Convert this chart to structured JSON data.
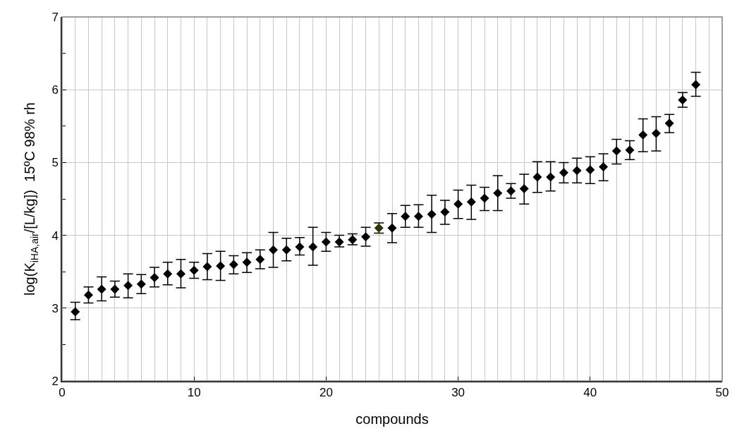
{
  "chart_data": {
    "type": "scatter",
    "xlabel": "compounds",
    "ylabel": "log(K$_{iHA,air}$/[L/kg])  15ºC 98% rh",
    "x": [
      1,
      2,
      3,
      4,
      5,
      6,
      7,
      8,
      9,
      10,
      11,
      12,
      13,
      14,
      15,
      16,
      17,
      18,
      19,
      20,
      21,
      22,
      23,
      24,
      25,
      26,
      27,
      28,
      29,
      30,
      31,
      32,
      33,
      34,
      35,
      36,
      37,
      38,
      39,
      40,
      41,
      42,
      43,
      44,
      45,
      46,
      47,
      48
    ],
    "values": [
      2.95,
      3.18,
      3.26,
      3.26,
      3.31,
      3.33,
      3.42,
      3.47,
      3.47,
      3.52,
      3.57,
      3.58,
      3.6,
      3.63,
      3.67,
      3.8,
      3.8,
      3.84,
      3.84,
      3.91,
      3.91,
      3.94,
      3.98,
      4.1,
      4.1,
      4.26,
      4.26,
      4.29,
      4.32,
      4.43,
      4.46,
      4.51,
      4.58,
      4.61,
      4.64,
      4.8,
      4.8,
      4.86,
      4.89,
      4.9,
      4.94,
      5.16,
      5.17,
      5.38,
      5.4,
      5.54,
      5.86,
      6.07
    ],
    "errors": [
      [
        2.84,
        3.08
      ],
      [
        3.07,
        3.29
      ],
      [
        3.1,
        3.43
      ],
      [
        3.15,
        3.37
      ],
      [
        3.14,
        3.47
      ],
      [
        3.2,
        3.46
      ],
      [
        3.29,
        3.56
      ],
      [
        3.32,
        3.63
      ],
      [
        3.28,
        3.67
      ],
      [
        3.41,
        3.63
      ],
      [
        3.39,
        3.75
      ],
      [
        3.38,
        3.78
      ],
      [
        3.47,
        3.72
      ],
      [
        3.49,
        3.76
      ],
      [
        3.54,
        3.8
      ],
      [
        3.56,
        4.04
      ],
      [
        3.65,
        3.96
      ],
      [
        3.73,
        3.97
      ],
      [
        3.59,
        4.11
      ],
      [
        3.78,
        4.04
      ],
      [
        3.84,
        4.0
      ],
      [
        3.87,
        4.02
      ],
      [
        3.85,
        4.11
      ],
      [
        4.03,
        4.17
      ],
      [
        3.9,
        4.3
      ],
      [
        4.11,
        4.41
      ],
      [
        4.11,
        4.42
      ],
      [
        4.04,
        4.55
      ],
      [
        4.15,
        4.48
      ],
      [
        4.23,
        4.62
      ],
      [
        4.22,
        4.69
      ],
      [
        4.34,
        4.66
      ],
      [
        4.34,
        4.82
      ],
      [
        4.51,
        4.71
      ],
      [
        4.43,
        4.84
      ],
      [
        4.59,
        5.01
      ],
      [
        4.61,
        5.01
      ],
      [
        4.72,
        5.0
      ],
      [
        4.72,
        5.06
      ],
      [
        4.71,
        5.08
      ],
      [
        4.75,
        5.12
      ],
      [
        4.98,
        5.32
      ],
      [
        5.04,
        5.3
      ],
      [
        5.15,
        5.6
      ],
      [
        5.16,
        5.63
      ],
      [
        5.41,
        5.66
      ],
      [
        5.76,
        5.96
      ],
      [
        5.91,
        6.24
      ]
    ],
    "colors": [
      "#000000",
      "#000000",
      "#000000",
      "#000000",
      "#000000",
      "#000000",
      "#000000",
      "#000000",
      "#000000",
      "#000000",
      "#000000",
      "#000000",
      "#000000",
      "#000000",
      "#000000",
      "#000000",
      "#000000",
      "#000000",
      "#000000",
      "#000000",
      "#000000",
      "#000000",
      "#000000",
      "#333300",
      "#000000",
      "#000000",
      "#000000",
      "#000000",
      "#000000",
      "#000000",
      "#000000",
      "#000000",
      "#000000",
      "#000000",
      "#000000",
      "#000000",
      "#000000",
      "#000000",
      "#000000",
      "#000000",
      "#000000",
      "#000000",
      "#000000",
      "#000000",
      "#000000",
      "#000000",
      "#000000",
      "#000000"
    ],
    "marker": "diamond",
    "xlim": [
      0,
      50
    ],
    "ylim": [
      2,
      7
    ],
    "xticks": [
      0,
      {
        "value": 1,
        "label": null
      },
      {
        "value": 2,
        "label": null
      },
      {
        "value": 3,
        "label": null
      },
      {
        "value": 4,
        "label": null
      },
      {
        "value": 5,
        "label": null
      },
      {
        "value": 6,
        "label": null
      },
      {
        "value": 7,
        "label": null
      },
      {
        "value": 8,
        "label": null
      },
      {
        "value": 9,
        "label": null
      },
      10,
      {
        "value": 11,
        "label": null
      },
      {
        "value": 12,
        "label": null
      },
      {
        "value": 13,
        "label": null
      },
      {
        "value": 14,
        "label": null
      },
      {
        "value": 15,
        "label": null
      },
      {
        "value": 16,
        "label": null
      },
      {
        "value": 17,
        "label": null
      },
      {
        "value": 18,
        "label": null
      },
      {
        "value": 19,
        "label": null
      },
      20,
      {
        "value": 21,
        "label": null
      },
      {
        "value": 22,
        "label": null
      },
      {
        "value": 23,
        "label": null
      },
      {
        "value": 24,
        "label": null
      },
      {
        "value": 25,
        "label": null
      },
      {
        "value": 26,
        "label": null
      },
      {
        "value": 27,
        "label": null
      },
      {
        "value": 28,
        "label": null
      },
      {
        "value": 29,
        "label": null
      },
      30,
      {
        "value": 31,
        "label": null
      },
      {
        "value": 32,
        "label": null
      },
      {
        "value": 33,
        "label": null
      },
      {
        "value": 34,
        "label": null
      },
      {
        "value": 35,
        "label": null
      },
      {
        "value": 36,
        "label": null
      },
      {
        "value": 37,
        "label": null
      },
      {
        "value": 38,
        "label": null
      },
      {
        "value": 39,
        "label": null
      },
      40,
      {
        "value": 41,
        "label": null
      },
      {
        "value": 42,
        "label": null
      },
      {
        "value": 43,
        "label": null
      },
      {
        "value": 44,
        "label": null
      },
      {
        "value": 45,
        "label": null
      },
      {
        "value": 46,
        "label": null
      },
      {
        "value": 47,
        "label": null
      },
      {
        "value": 48,
        "label": null
      },
      {
        "value": 49,
        "label": null
      },
      50
    ],
    "yticks": [
      2,
      {
        "value": 2.5,
        "label": null
      },
      3,
      {
        "value": 3.5,
        "label": null
      },
      4,
      {
        "value": 4.5,
        "label": null
      },
      5,
      {
        "value": 5.5,
        "label": null
      },
      6,
      {
        "value": 6.5,
        "label": null
      },
      7
    ],
    "grid": true
  }
}
